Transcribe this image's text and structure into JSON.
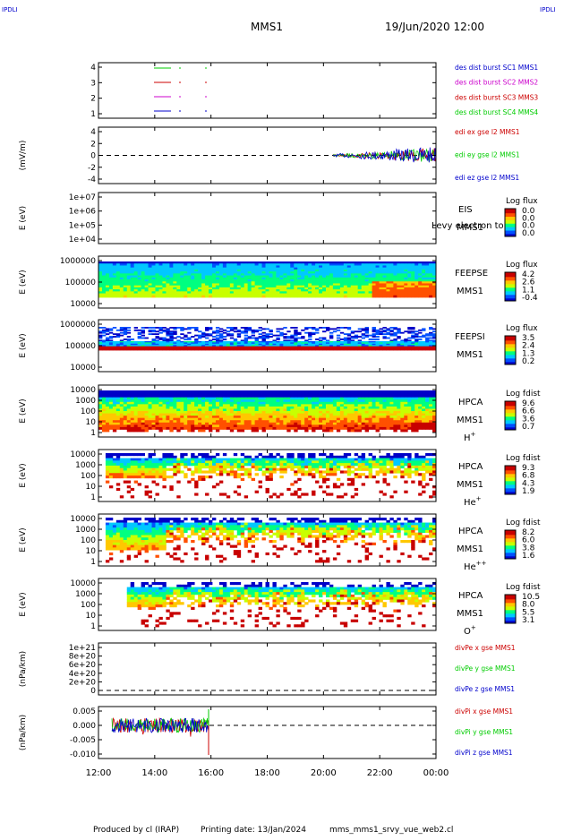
{
  "corner_left": "IPDLI",
  "corner_right": "IPDLI",
  "header": {
    "spacecraft": "MMS1",
    "datetime": "19/Jun/2020 12:00"
  },
  "footer": {
    "produced_by": "Produced by cl (IRAP)",
    "printing": "Printing date: 13/Jan/2024",
    "script": "mms_mms1_srvy_vue_web2.cl"
  },
  "colors": {
    "red": "#ff0000",
    "green": "#00cc00",
    "blue": "#0000cc",
    "magenta": "#cc00cc",
    "colorbar": [
      "#0000c8",
      "#0050ff",
      "#00c8ff",
      "#00ff80",
      "#c8ff00",
      "#ffc800",
      "#ff5000",
      "#c80000"
    ]
  },
  "chart_data": [
    {
      "id": "burst",
      "type": "line",
      "yticks": [
        "4",
        "3",
        "2",
        "1"
      ],
      "legend": [
        {
          "text": "des dist burst SC1 MMS1",
          "color": "#0000cc"
        },
        {
          "text": "des dist burst SC2 MMS2",
          "color": "#cc00cc"
        },
        {
          "text": "des dist burst SC3 MMS3",
          "color": "#cc0000"
        },
        {
          "text": "des dist burst SC4 MMS4",
          "color": "#00cc00"
        }
      ]
    },
    {
      "id": "edi",
      "type": "line",
      "ylabel": "(mV/m)",
      "yticks": [
        "4",
        "2",
        "0",
        "-2",
        "-4"
      ],
      "ylim": [
        -5,
        5
      ],
      "legend": [
        {
          "text": "edi ex gse l2 MMS1",
          "color": "#cc0000"
        },
        {
          "text": "edi ey gse l2 MMS1",
          "color": "#00cc00"
        },
        {
          "text": "edi ez gse l2 MMS1",
          "color": "#0000cc"
        }
      ]
    },
    {
      "id": "eis",
      "type": "heatmap",
      "ylabel": "E (eV)",
      "yticks": [
        "1e+07",
        "1e+06",
        "1e+05",
        "1e+04"
      ],
      "labels": [
        "EIS",
        "MMS1"
      ],
      "overlay": "Levy electron to",
      "cbar_title": "Log flux",
      "cbar_ticks": [
        "0.0",
        "0.0",
        "0.0",
        "0.0"
      ]
    },
    {
      "id": "feepse",
      "type": "heatmap",
      "ylabel": "E (eV)",
      "yticks": [
        "1000000",
        "100000",
        "10000"
      ],
      "labels": [
        "FEEPSE",
        "MMS1"
      ],
      "cbar_title": "Log flux",
      "cbar_ticks": [
        "4.2",
        "2.6",
        "1.1",
        "-0.4"
      ]
    },
    {
      "id": "feepsi",
      "type": "heatmap",
      "ylabel": "E (eV)",
      "yticks": [
        "1000000",
        "100000",
        "10000"
      ],
      "labels": [
        "FEEPSI",
        "MMS1"
      ],
      "cbar_title": "Log flux",
      "cbar_ticks": [
        "3.5",
        "2.4",
        "1.3",
        "0.2"
      ]
    },
    {
      "id": "hpca_h",
      "type": "heatmap",
      "ylabel": "E (eV)",
      "yticks": [
        "10000",
        "1000",
        "100",
        "10",
        "1"
      ],
      "labels": [
        "HPCA",
        "MMS1"
      ],
      "species": "H",
      "charge": "+",
      "cbar_title": "Log fdist",
      "cbar_ticks": [
        "9.6",
        "6.6",
        "3.6",
        "0.7"
      ]
    },
    {
      "id": "hpca_he",
      "type": "heatmap",
      "ylabel": "E (eV)",
      "yticks": [
        "10000",
        "1000",
        "100",
        "10",
        "1"
      ],
      "labels": [
        "HPCA",
        "MMS1"
      ],
      "species": "He",
      "charge": "+",
      "cbar_title": "Log fdist",
      "cbar_ticks": [
        "9.3",
        "6.8",
        "4.3",
        "1.9"
      ]
    },
    {
      "id": "hpca_hepp",
      "type": "heatmap",
      "ylabel": "E (eV)",
      "yticks": [
        "10000",
        "1000",
        "100",
        "10",
        "1"
      ],
      "labels": [
        "HPCA",
        "MMS1"
      ],
      "species": "He",
      "charge": "++",
      "cbar_title": "Log fdist",
      "cbar_ticks": [
        "8.2",
        "6.0",
        "3.8",
        "1.6"
      ]
    },
    {
      "id": "hpca_o",
      "type": "heatmap",
      "ylabel": "E (eV)",
      "yticks": [
        "10000",
        "1000",
        "100",
        "10",
        "1"
      ],
      "labels": [
        "HPCA",
        "MMS1"
      ],
      "species": "O",
      "charge": "+",
      "cbar_title": "Log fdist",
      "cbar_ticks": [
        "10.5",
        "8.0",
        "5.5",
        "3.1"
      ]
    },
    {
      "id": "divpe",
      "type": "line",
      "ylabel": "(nPa/km)",
      "yticks": [
        "1e+21",
        "8e+20",
        "6e+20",
        "4e+20",
        "2e+20",
        "0"
      ],
      "legend": [
        {
          "text": "divPe x gse MMS1",
          "color": "#cc0000"
        },
        {
          "text": "divPe y gse MMS1",
          "color": "#00cc00"
        },
        {
          "text": "divPe z gse MMS1",
          "color": "#0000cc"
        }
      ]
    },
    {
      "id": "divpi",
      "type": "line",
      "ylabel": "(nPa/km)",
      "yticks": [
        "0.005",
        "0.000",
        "-0.005",
        "-0.010"
      ],
      "ylim": [
        -0.011,
        0.007
      ],
      "legend": [
        {
          "text": "divPi x gse MMS1",
          "color": "#cc0000"
        },
        {
          "text": "divPi y gse MMS1",
          "color": "#00cc00"
        },
        {
          "text": "divPi z gse MMS1",
          "color": "#0000cc"
        }
      ]
    }
  ],
  "xaxis": {
    "ticks": [
      "12:00",
      "14:00",
      "16:00",
      "18:00",
      "20:00",
      "22:00",
      "00:00"
    ]
  }
}
